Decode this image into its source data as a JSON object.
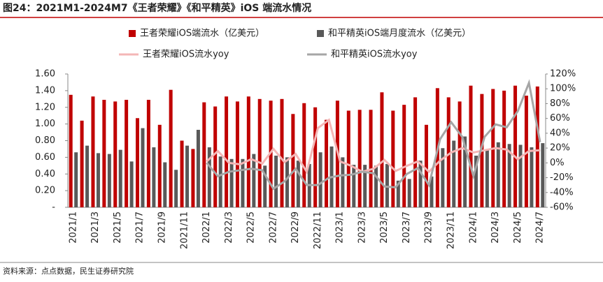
{
  "chart_data": {
    "type": "bar",
    "title": "图24：2021M1-2024M7《王者荣耀》《和平精英》iOS 端流水情况",
    "source": "资料来源：点点数据，民生证券研究院",
    "categories": [
      "2021/1",
      null,
      "2021/3",
      null,
      "2021/5",
      null,
      "2021/7",
      null,
      "2021/9",
      null,
      "2021/11",
      null,
      "2022/1",
      null,
      "2022/3",
      null,
      "2022/5",
      null,
      "2022/7",
      null,
      "2022/9",
      null,
      "2022/11",
      null,
      "2023/1",
      null,
      "2023/3",
      null,
      "2023/5",
      null,
      "2023/7",
      null,
      "2023/9",
      null,
      "2023/11",
      null,
      "2024/1",
      null,
      "2024/3",
      null,
      "2024/5",
      null,
      "2024/7"
    ],
    "ylim": [
      0,
      1.6
    ],
    "yticks": [
      {
        "value": 0,
        "label": "-"
      },
      {
        "value": 0.2,
        "label": "0.20"
      },
      {
        "value": 0.4,
        "label": "0.40"
      },
      {
        "value": 0.6,
        "label": "0.60"
      },
      {
        "value": 0.8,
        "label": "0.80"
      },
      {
        "value": 1.0,
        "label": "1.00"
      },
      {
        "value": 1.2,
        "label": "1.20"
      },
      {
        "value": 1.4,
        "label": "1.40"
      },
      {
        "value": 1.6,
        "label": "1.60"
      }
    ],
    "y2lim": [
      -60,
      120
    ],
    "y2ticks": [
      {
        "value": -60,
        "label": "-60%"
      },
      {
        "value": -40,
        "label": "-40%"
      },
      {
        "value": -20,
        "label": "-20%"
      },
      {
        "value": 0,
        "label": "0%"
      },
      {
        "value": 20,
        "label": "20%"
      },
      {
        "value": 40,
        "label": "40%"
      },
      {
        "value": 60,
        "label": "60%"
      },
      {
        "value": 80,
        "label": "80%"
      },
      {
        "value": 100,
        "label": "100%"
      },
      {
        "value": 120,
        "label": "120%"
      }
    ],
    "series": [
      {
        "name": "王者荣耀iOS端流水（亿美元）",
        "type": "bar",
        "color": "#c00000",
        "values": [
          1.35,
          1.04,
          1.33,
          1.29,
          1.27,
          1.29,
          1.07,
          1.29,
          0.99,
          1.41,
          0.8,
          0.7,
          1.26,
          1.21,
          1.33,
          1.27,
          1.33,
          1.3,
          1.28,
          1.3,
          1.12,
          1.25,
          1.2,
          1.05,
          1.28,
          1.16,
          1.17,
          1.17,
          1.38,
          1.16,
          1.23,
          1.32,
          0.99,
          1.43,
          1.32,
          1.27,
          1.46,
          1.36,
          1.42,
          1.4,
          1.46,
          1.34,
          1.45
        ]
      },
      {
        "name": "和平精英iOS端月度流水（亿美元）",
        "type": "bar",
        "color": "#595959",
        "values": [
          0.66,
          0.74,
          0.65,
          0.64,
          0.69,
          0.55,
          0.95,
          0.72,
          0.54,
          0.45,
          0.74,
          0.93,
          0.72,
          0.61,
          0.58,
          0.58,
          0.64,
          0.5,
          0.62,
          0.6,
          0.56,
          0.52,
          0.66,
          0.73,
          0.6,
          0.51,
          0.51,
          0.5,
          0.52,
          0.32,
          0.34,
          0.56,
          0.37,
          0.71,
          0.8,
          0.85,
          0.62,
          0.7,
          0.78,
          0.76,
          0.75,
          0.72,
          0.77
        ]
      },
      {
        "name": "王者荣耀iOS流水yoy",
        "type": "line",
        "axis": "y2",
        "color": "#f4b6b6",
        "values": [
          null,
          null,
          null,
          null,
          null,
          null,
          null,
          null,
          null,
          null,
          null,
          null,
          2,
          16,
          0,
          -2,
          5,
          -1,
          19,
          1,
          12,
          -12,
          47,
          58,
          2,
          -4,
          -12,
          -8,
          4,
          -11,
          -4,
          2,
          -12,
          3,
          14,
          20,
          14,
          17,
          20,
          18,
          5,
          16,
          17
        ]
      },
      {
        "name": "和平精英iOS流水yoy",
        "type": "line",
        "axis": "y2",
        "color": "#a6a6a6",
        "values": [
          null,
          null,
          null,
          null,
          null,
          null,
          null,
          null,
          null,
          null,
          null,
          null,
          0,
          -18,
          -12,
          -10,
          -8,
          -10,
          -35,
          -25,
          -8,
          -30,
          -30,
          -20,
          -17,
          -16,
          -12,
          -14,
          -32,
          -33,
          -15,
          -7,
          -30,
          32,
          55,
          35,
          -18,
          35,
          52,
          48,
          70,
          108,
          28
        ]
      }
    ]
  }
}
